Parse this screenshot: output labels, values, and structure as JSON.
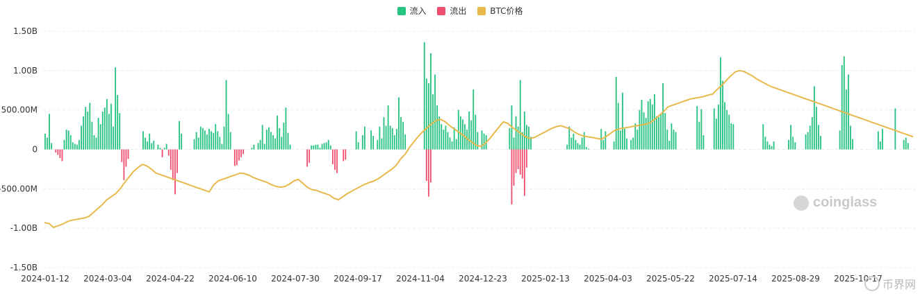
{
  "legend": {
    "inflow_label": "流入",
    "outflow_label": "流出",
    "price_label": "BTC价格"
  },
  "colors": {
    "inflow": "#26c281",
    "outflow": "#f0506e",
    "price": "#e8b84b",
    "grid": "#ececec"
  },
  "watermark": "coinglass",
  "corner_mark": "币界网",
  "chart_data": {
    "type": "bar",
    "ylim": [
      -1500000000,
      1500000000
    ],
    "yticks": [
      {
        "value": 1500000000,
        "label": "1.50B"
      },
      {
        "value": 1000000000,
        "label": "1.00B"
      },
      {
        "value": 500000000,
        "label": "500.00M"
      },
      {
        "value": 0,
        "label": "0"
      },
      {
        "value": -500000000,
        "label": "-500.00M"
      },
      {
        "value": -1000000000,
        "label": "-1.00B"
      },
      {
        "value": -1500000000,
        "label": "-1.50B"
      }
    ],
    "xticks": [
      "2024-01-12",
      "2024-03-04",
      "2024-04-22",
      "2024-06-10",
      "2024-07-30",
      "2024-09-17",
      "2024-11-04",
      "2024-12-23",
      "2025-02-13",
      "2025-04-03",
      "2025-05-22",
      "2025-07-14",
      "2025-08-29",
      "2025-10-17"
    ],
    "series": [
      {
        "name": "流入",
        "kind": "bar",
        "values": [
          200,
          150,
          450,
          80,
          0,
          0,
          0,
          0,
          0,
          120,
          250,
          240,
          180,
          90,
          70,
          60,
          120,
          300,
          420,
          540,
          480,
          590,
          350,
          180,
          150,
          400,
          320,
          480,
          530,
          640,
          450,
          580,
          290,
          1040,
          690,
          460,
          0,
          0,
          0,
          0,
          0,
          0,
          0,
          0,
          0,
          0,
          230,
          150,
          100,
          200,
          80,
          110,
          0,
          60,
          20,
          0,
          20,
          70,
          0,
          0,
          0,
          0,
          0,
          360,
          200,
          0,
          0,
          0,
          0,
          0,
          130,
          220,
          150,
          290,
          270,
          240,
          190,
          260,
          230,
          210,
          320,
          230,
          160,
          70,
          290,
          880,
          450,
          220,
          0,
          0,
          0,
          0,
          0,
          0,
          0,
          0,
          0,
          20,
          60,
          0,
          80,
          120,
          310,
          70,
          250,
          280,
          220,
          180,
          140,
          430,
          270,
          160,
          340,
          530,
          210,
          60,
          0,
          0,
          0,
          0,
          0,
          0,
          0,
          0,
          0,
          50,
          50,
          60,
          60,
          20,
          70,
          80,
          90,
          120,
          50,
          0,
          0,
          0,
          0,
          0,
          0,
          0,
          0,
          0,
          0,
          0,
          230,
          90,
          0,
          180,
          290,
          0,
          0,
          240,
          170,
          0,
          120,
          290,
          140,
          410,
          300,
          560,
          300,
          270,
          180,
          260,
          660,
          410,
          350,
          190,
          0,
          0,
          0,
          0,
          0,
          0,
          0,
          0,
          1360,
          900,
          840,
          1220,
          700,
          950,
          560,
          420,
          320,
          250,
          300,
          220,
          150,
          100,
          280,
          130,
          500,
          420,
          380,
          320,
          250,
          480,
          370,
          760,
          440,
          220,
          0,
          240,
          200,
          180,
          0,
          0,
          0,
          0,
          0,
          0,
          0,
          0,
          0,
          0,
          270,
          560,
          150,
          420,
          290,
          880,
          220,
          480,
          310,
          290,
          160,
          0,
          0,
          0,
          0,
          0,
          0,
          0,
          0,
          0,
          0,
          0,
          0,
          0,
          0,
          0,
          0,
          60,
          290,
          150,
          200,
          120,
          80,
          60,
          150,
          220,
          30,
          10,
          0,
          0,
          0,
          0,
          0,
          260,
          120,
          230,
          0,
          0,
          0,
          100,
          920,
          590,
          240,
          720,
          260,
          140,
          0,
          120,
          150,
          330,
          250,
          500,
          630,
          470,
          400,
          610,
          640,
          570,
          700,
          420,
          410,
          440,
          840,
          460,
          250,
          110,
          330,
          250,
          220,
          0,
          0,
          0,
          0,
          0,
          0,
          0,
          0,
          0,
          550,
          350,
          510,
          180,
          0,
          0,
          0,
          0,
          520,
          390,
          570,
          1170,
          870,
          600,
          500,
          440,
          330,
          320,
          0,
          0,
          0,
          0,
          0,
          0,
          0,
          0,
          0,
          0,
          0,
          0,
          0,
          320,
          160,
          100,
          60,
          40,
          100,
          0,
          0,
          0,
          0,
          0,
          0,
          120,
          310,
          160,
          90,
          0,
          0,
          0,
          0,
          190,
          220,
          300,
          410,
          800,
          540,
          310,
          170,
          0,
          0,
          0,
          0,
          0,
          0,
          0,
          0,
          240,
          1070,
          1180,
          760,
          950,
          300,
          130,
          0,
          0,
          0,
          0,
          0,
          0,
          0,
          0,
          0,
          0,
          0,
          230,
          100,
          260,
          0,
          0,
          0,
          0,
          0,
          520,
          0,
          0,
          0,
          120,
          150,
          80,
          0
        ]
      },
      {
        "name": "流出",
        "kind": "bar",
        "values": [
          0,
          0,
          0,
          0,
          0,
          40,
          70,
          110,
          150,
          0,
          0,
          0,
          0,
          0,
          0,
          0,
          0,
          0,
          0,
          0,
          0,
          0,
          0,
          0,
          0,
          0,
          0,
          0,
          0,
          0,
          0,
          0,
          0,
          0,
          0,
          0,
          160,
          390,
          220,
          120,
          0,
          0,
          0,
          0,
          0,
          0,
          0,
          0,
          0,
          0,
          0,
          0,
          0,
          0,
          0,
          100,
          0,
          0,
          80,
          260,
          390,
          570,
          300,
          0,
          0,
          0,
          0,
          0,
          0,
          0,
          0,
          0,
          0,
          0,
          0,
          0,
          0,
          0,
          0,
          0,
          0,
          0,
          0,
          0,
          0,
          0,
          0,
          0,
          0,
          210,
          200,
          140,
          100,
          60,
          0,
          0,
          0,
          0,
          0,
          0,
          0,
          0,
          0,
          0,
          0,
          0,
          0,
          0,
          0,
          0,
          0,
          0,
          0,
          0,
          0,
          0,
          0,
          0,
          0,
          0,
          0,
          0,
          0,
          220,
          170,
          0,
          0,
          0,
          0,
          0,
          0,
          0,
          0,
          0,
          0,
          190,
          260,
          300,
          0,
          0,
          150,
          130,
          0,
          0,
          0,
          0,
          0,
          0,
          0,
          0,
          0,
          0,
          0,
          0,
          0,
          0,
          0,
          0,
          0,
          0,
          0,
          0,
          0,
          0,
          0,
          0,
          0,
          0,
          0,
          0,
          0,
          0,
          0,
          0,
          0,
          0,
          0,
          0,
          0,
          400,
          600,
          420,
          0,
          0,
          0,
          0,
          0,
          0,
          0,
          0,
          0,
          0,
          0,
          0,
          0,
          0,
          0,
          0,
          0,
          0,
          0,
          0,
          0,
          0,
          0,
          0,
          0,
          0,
          0,
          0,
          0,
          0,
          0,
          0,
          0,
          0,
          0,
          0,
          0,
          700,
          460,
          300,
          250,
          320,
          370,
          590,
          230,
          0,
          0,
          0,
          0,
          0,
          0,
          0,
          0,
          0,
          0,
          0,
          0,
          0,
          0,
          0,
          0,
          0,
          0,
          0,
          0,
          0,
          0,
          0,
          0,
          0,
          0,
          0,
          0,
          0,
          0,
          0,
          0,
          0,
          0,
          0,
          0,
          0,
          0,
          0,
          0,
          0,
          0,
          0,
          0,
          0,
          0,
          0,
          0,
          0,
          0,
          0,
          0,
          0,
          0,
          0,
          0,
          0,
          0,
          0,
          0,
          0,
          0,
          0,
          0,
          0,
          0,
          0,
          0,
          0,
          0,
          0,
          0,
          0,
          0,
          0,
          0,
          0,
          0,
          0,
          0,
          0,
          0,
          0,
          0,
          0,
          0,
          0,
          0,
          0,
          0,
          0,
          0,
          0,
          0,
          0,
          0,
          0,
          0,
          0,
          0,
          0,
          0,
          0,
          0,
          0,
          0,
          0,
          0,
          0,
          0,
          0,
          0,
          0,
          0,
          0,
          0,
          0,
          0,
          0,
          0,
          0,
          0,
          0,
          0,
          0,
          0,
          0,
          0,
          0,
          0,
          0,
          0,
          0,
          0,
          0,
          0,
          0,
          0,
          0,
          0,
          0,
          0,
          0,
          0,
          0,
          0,
          0,
          0,
          0,
          0,
          0,
          0,
          0,
          0,
          0,
          0,
          0,
          0,
          0,
          0,
          0,
          0,
          0,
          0,
          0,
          0,
          0,
          0,
          0,
          0,
          0,
          0,
          0,
          0,
          0,
          0,
          0,
          0,
          0,
          0,
          0,
          0,
          0,
          0,
          0,
          0,
          0,
          0,
          0,
          0,
          0,
          0,
          0,
          0,
          0,
          0,
          0,
          0,
          0,
          0,
          0,
          0,
          0,
          0,
          0,
          0,
          0,
          0,
          0,
          0,
          0,
          0,
          0,
          0,
          0,
          0,
          0,
          0,
          0,
          0,
          0,
          0,
          0,
          0,
          0,
          0,
          0,
          0,
          0,
          0,
          0,
          0,
          0,
          0,
          0,
          0,
          0,
          0,
          0,
          0,
          0,
          0,
          0
        ]
      },
      {
        "name": "BTC价格",
        "kind": "line",
        "values": [
          -930,
          -940,
          -990,
          -970,
          -950,
          -920,
          -900,
          -890,
          -880,
          -870,
          -850,
          -800,
          -750,
          -700,
          -640,
          -600,
          -560,
          -500,
          -420,
          -350,
          -280,
          -230,
          -190,
          -210,
          -250,
          -300,
          -320,
          -340,
          -360,
          -380,
          -400,
          -420,
          -440,
          -460,
          -480,
          -500,
          -520,
          -540,
          -450,
          -400,
          -380,
          -360,
          -340,
          -320,
          -300,
          -310,
          -330,
          -360,
          -380,
          -400,
          -420,
          -450,
          -470,
          -480,
          -470,
          -440,
          -400,
          -380,
          -430,
          -480,
          -510,
          -520,
          -540,
          -560,
          -580,
          -620,
          -640,
          -600,
          -560,
          -530,
          -500,
          -470,
          -440,
          -420,
          -400,
          -370,
          -330,
          -290,
          -250,
          -200,
          -120,
          -60,
          30,
          100,
          170,
          230,
          280,
          330,
          370,
          380,
          350,
          300,
          260,
          220,
          180,
          130,
          90,
          50,
          40,
          80,
          140,
          210,
          280,
          350,
          330,
          280,
          240,
          200,
          160,
          140,
          150,
          180,
          210,
          240,
          270,
          290,
          300,
          280,
          260,
          220,
          190,
          170,
          160,
          150,
          140,
          130,
          160,
          200,
          240,
          260,
          270,
          280,
          290,
          300,
          310,
          320,
          340,
          380,
          430,
          480,
          540,
          560,
          580,
          600,
          620,
          640,
          650,
          660,
          670,
          690,
          700,
          760,
          810,
          870,
          930,
          980,
          1000,
          990,
          960,
          930,
          890,
          860,
          830,
          800,
          780,
          760,
          740,
          720,
          700,
          680,
          660,
          640,
          620,
          600,
          580,
          560,
          540,
          520,
          500,
          480,
          460,
          440,
          420,
          400,
          380,
          360,
          340,
          320,
          300,
          280,
          260,
          240,
          220,
          200,
          180,
          160
        ]
      }
    ],
    "note_scale": "values in millions USD for bars; price series in axis-equivalent millions"
  }
}
